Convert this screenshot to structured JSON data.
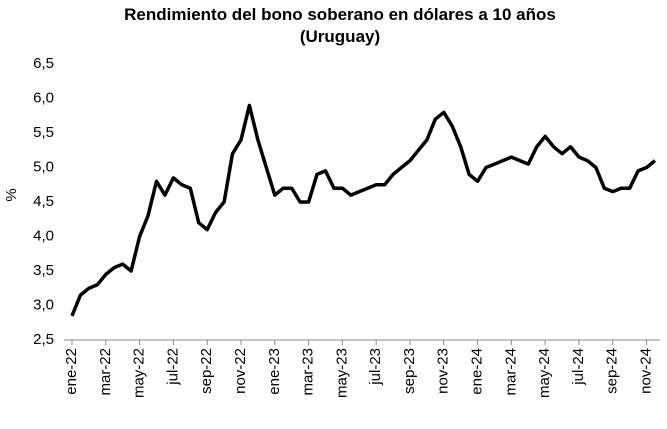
{
  "chart_data": {
    "type": "line",
    "title": [
      "Rendimiento del bono soberano en dólares a 10 años",
      "(Uruguay)"
    ],
    "y_label": "%",
    "categories": [
      "ene-22",
      null,
      null,
      null,
      "mar-22",
      null,
      null,
      null,
      "may-22",
      null,
      null,
      null,
      "jul-22",
      null,
      null,
      null,
      "sep-22",
      null,
      null,
      null,
      "nov-22",
      null,
      null,
      null,
      "ene-23",
      null,
      null,
      null,
      "mar-23",
      null,
      null,
      null,
      "may-23",
      null,
      null,
      null,
      "jul-23",
      null,
      null,
      null,
      "sep-23",
      null,
      null,
      null,
      "nov-23",
      null,
      null,
      null,
      "ene-24",
      null,
      null,
      null,
      "mar-24",
      null,
      null,
      null,
      "may-24",
      null,
      null,
      null,
      "jul-24",
      null,
      null,
      null,
      "sep-24",
      null,
      null,
      null,
      "nov-24",
      null
    ],
    "series": [
      {
        "name": "Uruguay",
        "color": "#000000",
        "values": [
          2.85,
          3.15,
          3.25,
          3.3,
          3.45,
          3.55,
          3.6,
          3.5,
          4.0,
          4.3,
          4.8,
          4.6,
          4.85,
          4.75,
          4.7,
          4.2,
          4.1,
          4.35,
          4.5,
          5.2,
          5.4,
          5.9,
          5.4,
          5.0,
          4.6,
          4.7,
          4.7,
          4.5,
          4.5,
          4.9,
          4.95,
          4.7,
          4.7,
          4.6,
          4.65,
          4.7,
          4.75,
          4.75,
          4.9,
          5.0,
          5.1,
          5.25,
          5.4,
          5.7,
          5.8,
          5.6,
          5.3,
          4.9,
          4.8,
          5.0,
          5.05,
          5.1,
          5.15,
          5.1,
          5.05,
          5.3,
          5.45,
          5.3,
          5.2,
          5.3,
          5.15,
          5.1,
          5.0,
          4.7,
          4.65,
          4.7,
          4.7,
          4.95,
          5.0,
          5.1
        ]
      }
    ],
    "ylim": [
      2.5,
      6.5
    ],
    "yticks": [
      {
        "value": 2.5,
        "label": "2,5"
      },
      {
        "value": 3.0,
        "label": "3,0"
      },
      {
        "value": 3.5,
        "label": "3,5"
      },
      {
        "value": 4.0,
        "label": "4,0"
      },
      {
        "value": 4.5,
        "label": "4,5"
      },
      {
        "value": 5.0,
        "label": "5,0"
      },
      {
        "value": 5.5,
        "label": "5,5"
      },
      {
        "value": 6.0,
        "label": "6,0"
      },
      {
        "value": 6.5,
        "label": "6,5"
      }
    ],
    "grid": false
  }
}
